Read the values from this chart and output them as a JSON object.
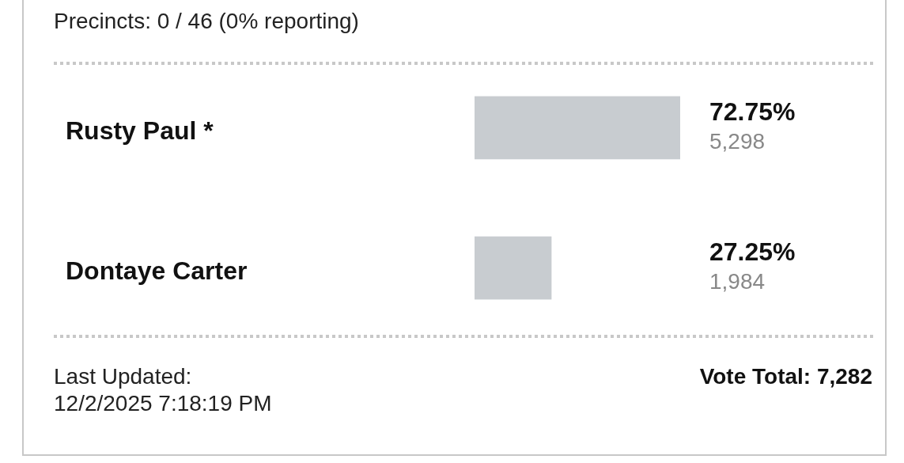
{
  "chart_data": {
    "type": "bar",
    "orientation": "horizontal",
    "title": "Precincts: 0 / 46 (0% reporting)",
    "categories": [
      "Rusty Paul *",
      "Dontaye Carter"
    ],
    "values": [
      72.75,
      27.25
    ],
    "color": "#c8ccd0",
    "value_labels": [
      "72.75%\n5,298",
      "27.25%\n1,984"
    ],
    "annotations": [
      "Last Updated:\n12/2/2025 7:18:19 PM",
      "Vote Total: 7,282"
    ]
  }
}
